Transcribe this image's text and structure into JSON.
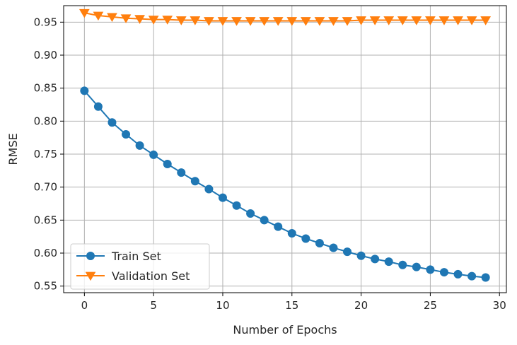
{
  "chart_data": {
    "type": "line",
    "xlabel": "Number of Epochs",
    "ylabel": "RMSE",
    "xlim": [
      -1.5,
      30.5
    ],
    "ylim": [
      0.54,
      0.975
    ],
    "xticks": [
      0,
      5,
      10,
      15,
      20,
      25,
      30
    ],
    "yticks": [
      0.55,
      0.6,
      0.65,
      0.7,
      0.75,
      0.8,
      0.85,
      0.9,
      0.95
    ],
    "grid": true,
    "legend_position": "lower-left",
    "x": [
      0,
      1,
      2,
      3,
      4,
      5,
      6,
      7,
      8,
      9,
      10,
      11,
      12,
      13,
      14,
      15,
      16,
      17,
      18,
      19,
      20,
      21,
      22,
      23,
      24,
      25,
      26,
      27,
      28,
      29
    ],
    "series": [
      {
        "name": "Train Set",
        "color": "#1f77b4",
        "marker": "circle",
        "values": [
          0.846,
          0.822,
          0.798,
          0.78,
          0.763,
          0.749,
          0.735,
          0.722,
          0.709,
          0.697,
          0.684,
          0.672,
          0.66,
          0.65,
          0.64,
          0.63,
          0.622,
          0.615,
          0.608,
          0.602,
          0.596,
          0.591,
          0.587,
          0.582,
          0.579,
          0.575,
          0.571,
          0.568,
          0.565,
          0.563
        ]
      },
      {
        "name": "Validation Set",
        "color": "#ff7f0e",
        "marker": "triangle-down",
        "values": [
          0.964,
          0.96,
          0.958,
          0.956,
          0.955,
          0.954,
          0.954,
          0.953,
          0.953,
          0.952,
          0.952,
          0.952,
          0.952,
          0.952,
          0.952,
          0.952,
          0.952,
          0.952,
          0.952,
          0.952,
          0.953,
          0.953,
          0.953,
          0.953,
          0.953,
          0.953,
          0.953,
          0.953,
          0.953,
          0.953
        ]
      }
    ]
  }
}
